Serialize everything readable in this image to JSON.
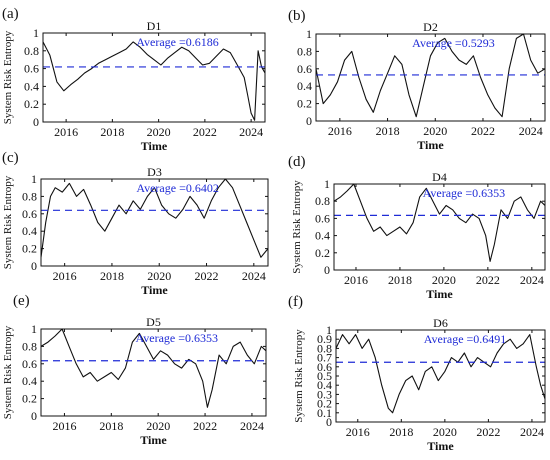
{
  "figure": {
    "colors": {
      "series": "#111111",
      "average_line": "#1f2bd6",
      "axes": "#111111",
      "background": "#ffffff"
    }
  },
  "chart_data": [
    {
      "panel": "(a)",
      "title": "D1",
      "type": "line",
      "xlabel": "Time",
      "ylabel": "System Risk Entropy",
      "xlim": [
        2015.0,
        2024.6
      ],
      "ylim": [
        0,
        1
      ],
      "xticks": [
        2016,
        2018,
        2020,
        2022,
        2024
      ],
      "yticks": [
        0,
        0.2,
        0.4,
        0.6,
        0.8,
        1
      ],
      "average": 0.6186,
      "average_label": "Average =0.6186",
      "grid": false,
      "series": [
        {
          "x": [
            2015.0,
            2015.3,
            2015.6,
            2015.9,
            2016.2,
            2016.5,
            2016.8,
            2017.1,
            2017.4,
            2017.7,
            2018.0,
            2018.3,
            2018.6,
            2018.9,
            2019.2,
            2019.5,
            2019.8,
            2020.1,
            2020.4,
            2020.7,
            2021.0,
            2021.3,
            2021.6,
            2021.9,
            2022.2,
            2022.5,
            2022.8,
            2023.1,
            2023.4,
            2023.7,
            2023.85,
            2024.0,
            2024.15,
            2024.3,
            2024.45,
            2024.6
          ],
          "y": [
            0.9,
            0.75,
            0.45,
            0.35,
            0.42,
            0.48,
            0.55,
            0.6,
            0.66,
            0.7,
            0.74,
            0.78,
            0.82,
            0.9,
            0.84,
            0.76,
            0.7,
            0.64,
            0.72,
            0.78,
            0.84,
            0.8,
            0.72,
            0.64,
            0.66,
            0.74,
            0.82,
            0.78,
            0.64,
            0.5,
            0.3,
            0.1,
            0.02,
            0.8,
            0.62,
            0.55
          ]
        }
      ]
    },
    {
      "panel": "(b)",
      "title": "D2",
      "type": "line",
      "xlabel": "Time",
      "ylabel": "",
      "xlim": [
        2015.0,
        2024.6
      ],
      "ylim": [
        0,
        1
      ],
      "xticks": [
        2016,
        2018,
        2020,
        2022,
        2024
      ],
      "yticks": [
        0,
        0.2,
        0.4,
        0.6,
        0.8,
        1
      ],
      "average": 0.5293,
      "average_label": "Average =0.5293",
      "grid": false,
      "series": [
        {
          "x": [
            2015.0,
            2015.3,
            2015.6,
            2015.9,
            2016.2,
            2016.5,
            2016.8,
            2017.1,
            2017.4,
            2017.7,
            2018.0,
            2018.3,
            2018.6,
            2018.9,
            2019.2,
            2019.5,
            2019.8,
            2020.1,
            2020.4,
            2020.7,
            2021.0,
            2021.3,
            2021.6,
            2021.9,
            2022.2,
            2022.5,
            2022.8,
            2023.1,
            2023.4,
            2023.7,
            2024.0,
            2024.3,
            2024.6
          ],
          "y": [
            0.6,
            0.2,
            0.3,
            0.45,
            0.7,
            0.8,
            0.5,
            0.25,
            0.1,
            0.35,
            0.55,
            0.75,
            0.65,
            0.3,
            0.05,
            0.4,
            0.75,
            0.9,
            0.95,
            0.8,
            0.7,
            0.65,
            0.75,
            0.5,
            0.3,
            0.15,
            0.05,
            0.6,
            0.95,
            1.0,
            0.7,
            0.55,
            0.6
          ]
        }
      ]
    },
    {
      "panel": "(c)",
      "title": "D3",
      "type": "line",
      "xlabel": "Time",
      "ylabel": "System Risk Entropy",
      "xlim": [
        2015.0,
        2024.6
      ],
      "ylim": [
        0,
        1
      ],
      "xticks": [
        2016,
        2018,
        2020,
        2022,
        2024
      ],
      "yticks": [
        0,
        0.2,
        0.4,
        0.6,
        0.8,
        1
      ],
      "average": 0.6402,
      "average_label": "Average =0.6402",
      "grid": false,
      "series": [
        {
          "x": [
            2015.0,
            2015.2,
            2015.4,
            2015.6,
            2015.9,
            2016.2,
            2016.5,
            2016.8,
            2017.1,
            2017.4,
            2017.7,
            2018.0,
            2018.3,
            2018.6,
            2018.9,
            2019.2,
            2019.5,
            2019.8,
            2020.1,
            2020.4,
            2020.7,
            2021.0,
            2021.3,
            2021.6,
            2021.9,
            2022.2,
            2022.5,
            2022.8,
            2023.1,
            2023.4,
            2023.7,
            2024.0,
            2024.3,
            2024.6
          ],
          "y": [
            0.1,
            0.5,
            0.8,
            0.9,
            0.85,
            0.95,
            0.8,
            0.88,
            0.7,
            0.5,
            0.4,
            0.55,
            0.7,
            0.6,
            0.75,
            0.65,
            0.8,
            0.9,
            0.7,
            0.6,
            0.55,
            0.65,
            0.8,
            0.7,
            0.55,
            0.75,
            0.9,
            1.0,
            0.9,
            0.7,
            0.5,
            0.3,
            0.1,
            0.2
          ]
        }
      ]
    },
    {
      "panel": "(d)",
      "title": "D4",
      "type": "line",
      "xlabel": "Time",
      "ylabel": "System Risk Entropy",
      "xlim": [
        2015.0,
        2024.6
      ],
      "ylim": [
        0,
        1
      ],
      "xticks": [
        2016,
        2018,
        2020,
        2022,
        2024
      ],
      "yticks": [
        0,
        0.2,
        0.4,
        0.6,
        0.8,
        1
      ],
      "average": 0.6353,
      "average_label": "Average =0.6353",
      "grid": false,
      "series": [
        {
          "x": [
            2015.0,
            2015.3,
            2015.6,
            2015.9,
            2016.2,
            2016.5,
            2016.8,
            2017.1,
            2017.4,
            2017.7,
            2018.0,
            2018.3,
            2018.6,
            2018.9,
            2019.2,
            2019.5,
            2019.8,
            2020.1,
            2020.4,
            2020.7,
            2021.0,
            2021.3,
            2021.6,
            2021.9,
            2022.1,
            2022.3,
            2022.6,
            2022.9,
            2023.2,
            2023.5,
            2023.8,
            2024.1,
            2024.4,
            2024.6
          ],
          "y": [
            0.8,
            0.85,
            0.92,
            1.0,
            0.8,
            0.6,
            0.45,
            0.5,
            0.4,
            0.45,
            0.5,
            0.42,
            0.55,
            0.85,
            0.95,
            0.8,
            0.65,
            0.75,
            0.7,
            0.6,
            0.55,
            0.65,
            0.6,
            0.4,
            0.1,
            0.3,
            0.7,
            0.6,
            0.8,
            0.85,
            0.7,
            0.6,
            0.8,
            0.75
          ]
        }
      ]
    },
    {
      "panel": "(e)",
      "title": "D5",
      "type": "line",
      "xlabel": "Time",
      "ylabel": "System Risk Entropy",
      "xlim": [
        2015.0,
        2024.6
      ],
      "ylim": [
        0,
        1
      ],
      "xticks": [
        2016,
        2018,
        2020,
        2022,
        2024
      ],
      "yticks": [
        0,
        0.2,
        0.4,
        0.6,
        0.8,
        1
      ],
      "average": 0.6353,
      "average_label": "Average =0.6353",
      "grid": false,
      "series": [
        {
          "x": [
            2015.0,
            2015.3,
            2015.6,
            2015.9,
            2016.2,
            2016.5,
            2016.8,
            2017.1,
            2017.4,
            2017.7,
            2018.0,
            2018.3,
            2018.6,
            2018.9,
            2019.2,
            2019.5,
            2019.8,
            2020.1,
            2020.4,
            2020.7,
            2021.0,
            2021.3,
            2021.6,
            2021.9,
            2022.1,
            2022.3,
            2022.6,
            2022.9,
            2023.2,
            2023.5,
            2023.8,
            2024.1,
            2024.4,
            2024.6
          ],
          "y": [
            0.8,
            0.85,
            0.92,
            1.0,
            0.8,
            0.6,
            0.45,
            0.5,
            0.4,
            0.45,
            0.5,
            0.42,
            0.55,
            0.85,
            0.95,
            0.8,
            0.65,
            0.75,
            0.7,
            0.6,
            0.55,
            0.65,
            0.6,
            0.4,
            0.1,
            0.3,
            0.7,
            0.6,
            0.8,
            0.85,
            0.7,
            0.6,
            0.8,
            0.75
          ]
        }
      ]
    },
    {
      "panel": "(f)",
      "title": "D6",
      "type": "line",
      "xlabel": "Time",
      "ylabel": "System Risk Entropy",
      "xlim": [
        2015.0,
        2024.6
      ],
      "ylim": [
        0,
        1
      ],
      "xticks": [
        2016,
        2018,
        2020,
        2022,
        2024
      ],
      "yticks": [
        0,
        0.1,
        0.2,
        0.3,
        0.4,
        0.5,
        0.6,
        0.7,
        0.8,
        0.9,
        1
      ],
      "average": 0.6491,
      "average_label": "Average =0.6491",
      "grid": false,
      "series": [
        {
          "x": [
            2015.0,
            2015.3,
            2015.6,
            2015.9,
            2016.2,
            2016.5,
            2016.8,
            2017.1,
            2017.4,
            2017.6,
            2017.9,
            2018.2,
            2018.5,
            2018.8,
            2019.1,
            2019.4,
            2019.7,
            2020.0,
            2020.3,
            2020.6,
            2020.9,
            2021.2,
            2021.5,
            2021.8,
            2022.1,
            2022.4,
            2022.7,
            2023.0,
            2023.3,
            2023.6,
            2023.9,
            2024.2,
            2024.4,
            2024.6
          ],
          "y": [
            0.8,
            0.95,
            0.85,
            0.95,
            0.8,
            0.9,
            0.7,
            0.4,
            0.15,
            0.1,
            0.3,
            0.45,
            0.5,
            0.35,
            0.55,
            0.6,
            0.45,
            0.55,
            0.7,
            0.65,
            0.75,
            0.6,
            0.7,
            0.65,
            0.6,
            0.75,
            0.85,
            0.9,
            0.8,
            0.85,
            0.95,
            0.6,
            0.4,
            0.25
          ]
        }
      ]
    }
  ]
}
